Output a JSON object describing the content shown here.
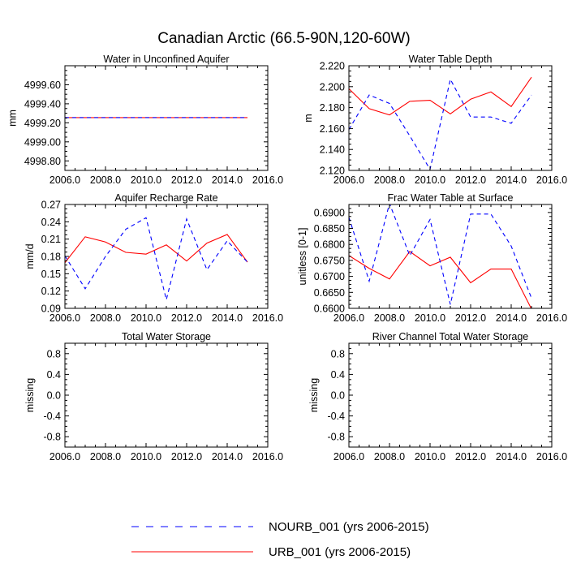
{
  "figure": {
    "title": "Canadian Arctic (66.5-90N,120-60W)",
    "x_tick_labels": [
      "2006.0",
      "2008.0",
      "2010.0",
      "2012.0",
      "2014.0",
      "2016.0"
    ]
  },
  "legend": {
    "entries": [
      {
        "label": "NOURB_001 (yrs 2006-2015)",
        "color": "#0000ff",
        "dash": "dashed"
      },
      {
        "label": "URB_001 (yrs 2006-2015)",
        "color": "#ff0000",
        "dash": "solid"
      }
    ]
  },
  "chart_data": [
    {
      "type": "line",
      "title": "Water in Unconfined Aquifer",
      "xlabel": "",
      "ylabel": "mm",
      "xlim": [
        2006,
        2016
      ],
      "ylim": [
        4998.7,
        4999.8
      ],
      "yticks": [
        4998.8,
        4999.0,
        4999.2,
        4999.4,
        4999.6
      ],
      "ytick_labels": [
        "4998.80",
        "4999.00",
        "4999.20",
        "4999.40",
        "4999.60"
      ],
      "x": [
        2006,
        2007,
        2008,
        2009,
        2010,
        2011,
        2012,
        2013,
        2014,
        2015
      ],
      "series": [
        {
          "name": "URB_001",
          "values": [
            4999.255,
            4999.255,
            4999.255,
            4999.255,
            4999.255,
            4999.255,
            4999.255,
            4999.255,
            4999.255,
            4999.255
          ]
        },
        {
          "name": "NOURB_001",
          "values": [
            4999.255,
            4999.255,
            4999.255,
            4999.255,
            4999.255,
            4999.255,
            4999.255,
            4999.255,
            4999.255,
            4999.255
          ]
        }
      ]
    },
    {
      "type": "line",
      "title": "Water Table Depth",
      "xlabel": "",
      "ylabel": "m",
      "xlim": [
        2006,
        2016
      ],
      "ylim": [
        2.12,
        2.22
      ],
      "yticks": [
        2.12,
        2.14,
        2.16,
        2.18,
        2.2,
        2.22
      ],
      "ytick_labels": [
        "2.120",
        "2.140",
        "2.160",
        "2.180",
        "2.200",
        "2.220"
      ],
      "x": [
        2006,
        2007,
        2008,
        2009,
        2010,
        2011,
        2012,
        2013,
        2014,
        2015
      ],
      "series": [
        {
          "name": "URB_001",
          "values": [
            2.198,
            2.179,
            2.173,
            2.186,
            2.187,
            2.174,
            2.188,
            2.195,
            2.181,
            2.209
          ]
        },
        {
          "name": "NOURB_001",
          "values": [
            2.159,
            2.192,
            2.184,
            2.153,
            2.121,
            2.207,
            2.171,
            2.171,
            2.165,
            2.192
          ]
        }
      ]
    },
    {
      "type": "line",
      "title": "Aquifer Recharge Rate",
      "xlabel": "",
      "ylabel": "mm/d",
      "xlim": [
        2006,
        2016
      ],
      "ylim": [
        0.09,
        0.27
      ],
      "yticks": [
        0.09,
        0.12,
        0.15,
        0.18,
        0.21,
        0.24,
        0.27
      ],
      "ytick_labels": [
        "0.09",
        "0.12",
        "0.15",
        "0.18",
        "0.21",
        "0.24",
        "0.27"
      ],
      "x": [
        2006,
        2007,
        2008,
        2009,
        2010,
        2011,
        2012,
        2013,
        2014,
        2015
      ],
      "series": [
        {
          "name": "URB_001",
          "values": [
            0.169,
            0.214,
            0.205,
            0.187,
            0.184,
            0.2,
            0.172,
            0.203,
            0.218,
            0.17
          ]
        },
        {
          "name": "NOURB_001",
          "values": [
            0.181,
            0.124,
            0.18,
            0.227,
            0.247,
            0.105,
            0.245,
            0.157,
            0.207,
            0.17
          ]
        }
      ]
    },
    {
      "type": "line",
      "title": "Frac Water Table at Surface",
      "xlabel": "",
      "ylabel": "unitless [0-1]",
      "xlim": [
        2006,
        2016
      ],
      "ylim": [
        0.66,
        0.6925
      ],
      "yticks": [
        0.66,
        0.665,
        0.67,
        0.675,
        0.68,
        0.685,
        0.69
      ],
      "ytick_labels": [
        "0.6600",
        "0.6650",
        "0.6700",
        "0.6750",
        "0.6800",
        "0.6850",
        "0.6900"
      ],
      "x": [
        2006,
        2007,
        2008,
        2009,
        2010,
        2011,
        2012,
        2013,
        2014,
        2015
      ],
      "series": [
        {
          "name": "URB_001",
          "values": [
            0.6765,
            0.6725,
            0.6692,
            0.6778,
            0.6733,
            0.676,
            0.668,
            0.6723,
            0.6723,
            0.6598
          ]
        },
        {
          "name": "NOURB_001",
          "values": [
            0.6885,
            0.6685,
            0.6928,
            0.6765,
            0.6878,
            0.6612,
            0.6895,
            0.6895,
            0.6795,
            0.6632
          ]
        }
      ]
    },
    {
      "type": "line",
      "title": "Total Water Storage",
      "xlabel": "",
      "ylabel": "missing",
      "xlim": [
        2006,
        2016
      ],
      "ylim": [
        -1.0,
        1.0
      ],
      "yticks": [
        -0.8,
        -0.4,
        0.0,
        0.4,
        0.8
      ],
      "ytick_labels": [
        "-0.8",
        "-0.4",
        "0.0",
        "0.4",
        "0.8"
      ],
      "x": [],
      "series": []
    },
    {
      "type": "line",
      "title": "River Channel Total Water Storage",
      "xlabel": "",
      "ylabel": "missing",
      "xlim": [
        2006,
        2016
      ],
      "ylim": [
        -1.0,
        1.0
      ],
      "yticks": [
        -0.8,
        -0.4,
        0.0,
        0.4,
        0.8
      ],
      "ytick_labels": [
        "-0.8",
        "-0.4",
        "0.0",
        "0.4",
        "0.8"
      ],
      "x": [],
      "series": []
    }
  ]
}
